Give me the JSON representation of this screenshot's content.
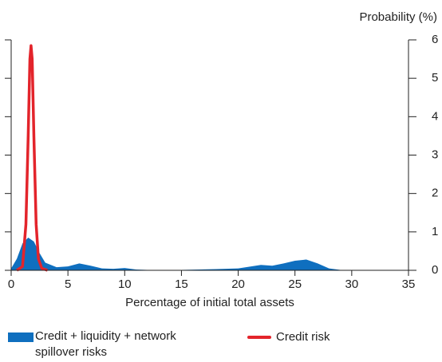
{
  "chart_data": {
    "type": "area-line",
    "xlabel": "Percentage of initial total assets",
    "ylabel": "Probability (%)",
    "xlim": [
      0,
      35
    ],
    "xticks": [
      0,
      5,
      10,
      15,
      20,
      25,
      30,
      35
    ],
    "ylim": [
      0,
      6
    ],
    "yticks": [
      0,
      1,
      2,
      3,
      4,
      5,
      6
    ],
    "series": [
      {
        "name": "Credit + liquidity + network spillover risks",
        "color": "#0f6fbf",
        "kind": "area",
        "x": [
          0,
          0.5,
          1,
          1.5,
          2,
          2.5,
          3,
          4,
          5,
          6,
          7,
          8,
          9,
          10,
          11,
          12,
          15,
          18,
          20,
          22,
          23,
          24,
          25,
          26,
          27,
          28,
          29,
          30
        ],
        "values": [
          0.05,
          0.3,
          0.7,
          0.85,
          0.75,
          0.45,
          0.2,
          0.08,
          0.1,
          0.18,
          0.12,
          0.05,
          0.04,
          0.06,
          0.02,
          0.01,
          0.01,
          0.03,
          0.05,
          0.14,
          0.12,
          0.18,
          0.25,
          0.28,
          0.18,
          0.05,
          0.01,
          0
        ]
      },
      {
        "name": "Credit risk",
        "color": "#e3242b",
        "kind": "line",
        "x": [
          0.5,
          1,
          1.3,
          1.5,
          1.65,
          1.75,
          1.85,
          2.0,
          2.2,
          2.4,
          2.7,
          3.2
        ],
        "values": [
          0,
          0.1,
          1.2,
          3.5,
          5.5,
          5.85,
          5.5,
          3.5,
          1.2,
          0.3,
          0.05,
          0
        ]
      }
    ]
  }
}
